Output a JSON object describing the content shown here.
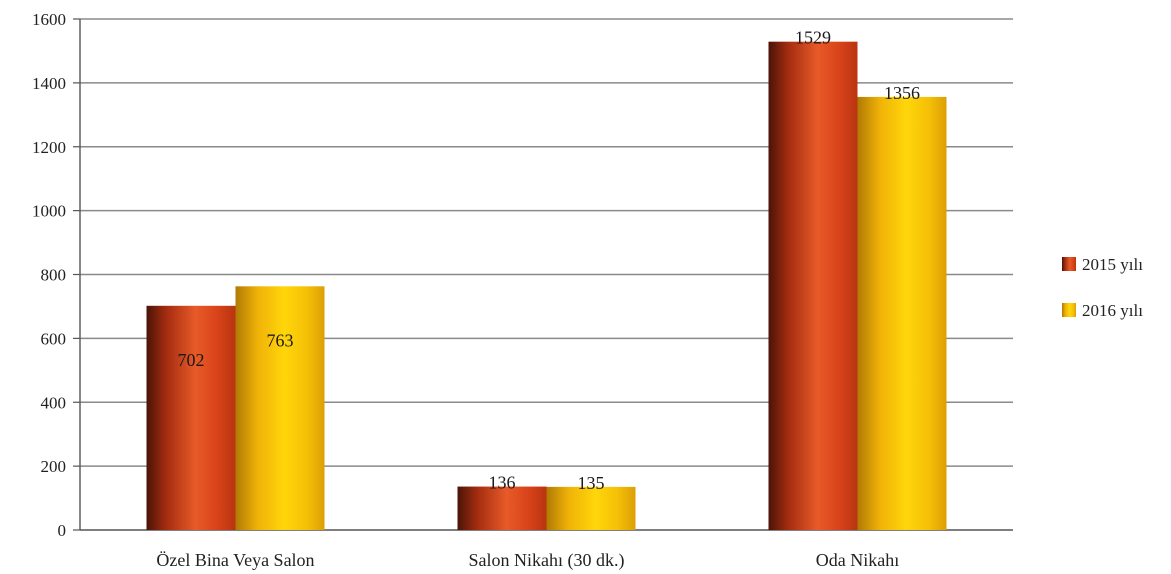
{
  "chart_data": {
    "type": "bar",
    "title": "",
    "xlabel": "",
    "ylabel": "",
    "categories": [
      "Özel Bina Veya Salon",
      "Salon Nikahı (30 dk.)",
      "Oda Nikahı"
    ],
    "series": [
      {
        "name": "2015 yılı",
        "values": [
          702,
          136,
          1529
        ],
        "labels": [
          "702",
          "136",
          "1529"
        ],
        "color": "#e04a1c"
      },
      {
        "name": "2016 yılı",
        "values": [
          763,
          135,
          1356
        ],
        "labels": [
          "763",
          "135",
          "1356"
        ],
        "color": "#f2b705"
      }
    ],
    "ylim": [
      0,
      1600
    ],
    "yticks": [
      0,
      200,
      400,
      600,
      800,
      1000,
      1200,
      1400,
      1600
    ],
    "grid": true,
    "legend_position": "right"
  }
}
